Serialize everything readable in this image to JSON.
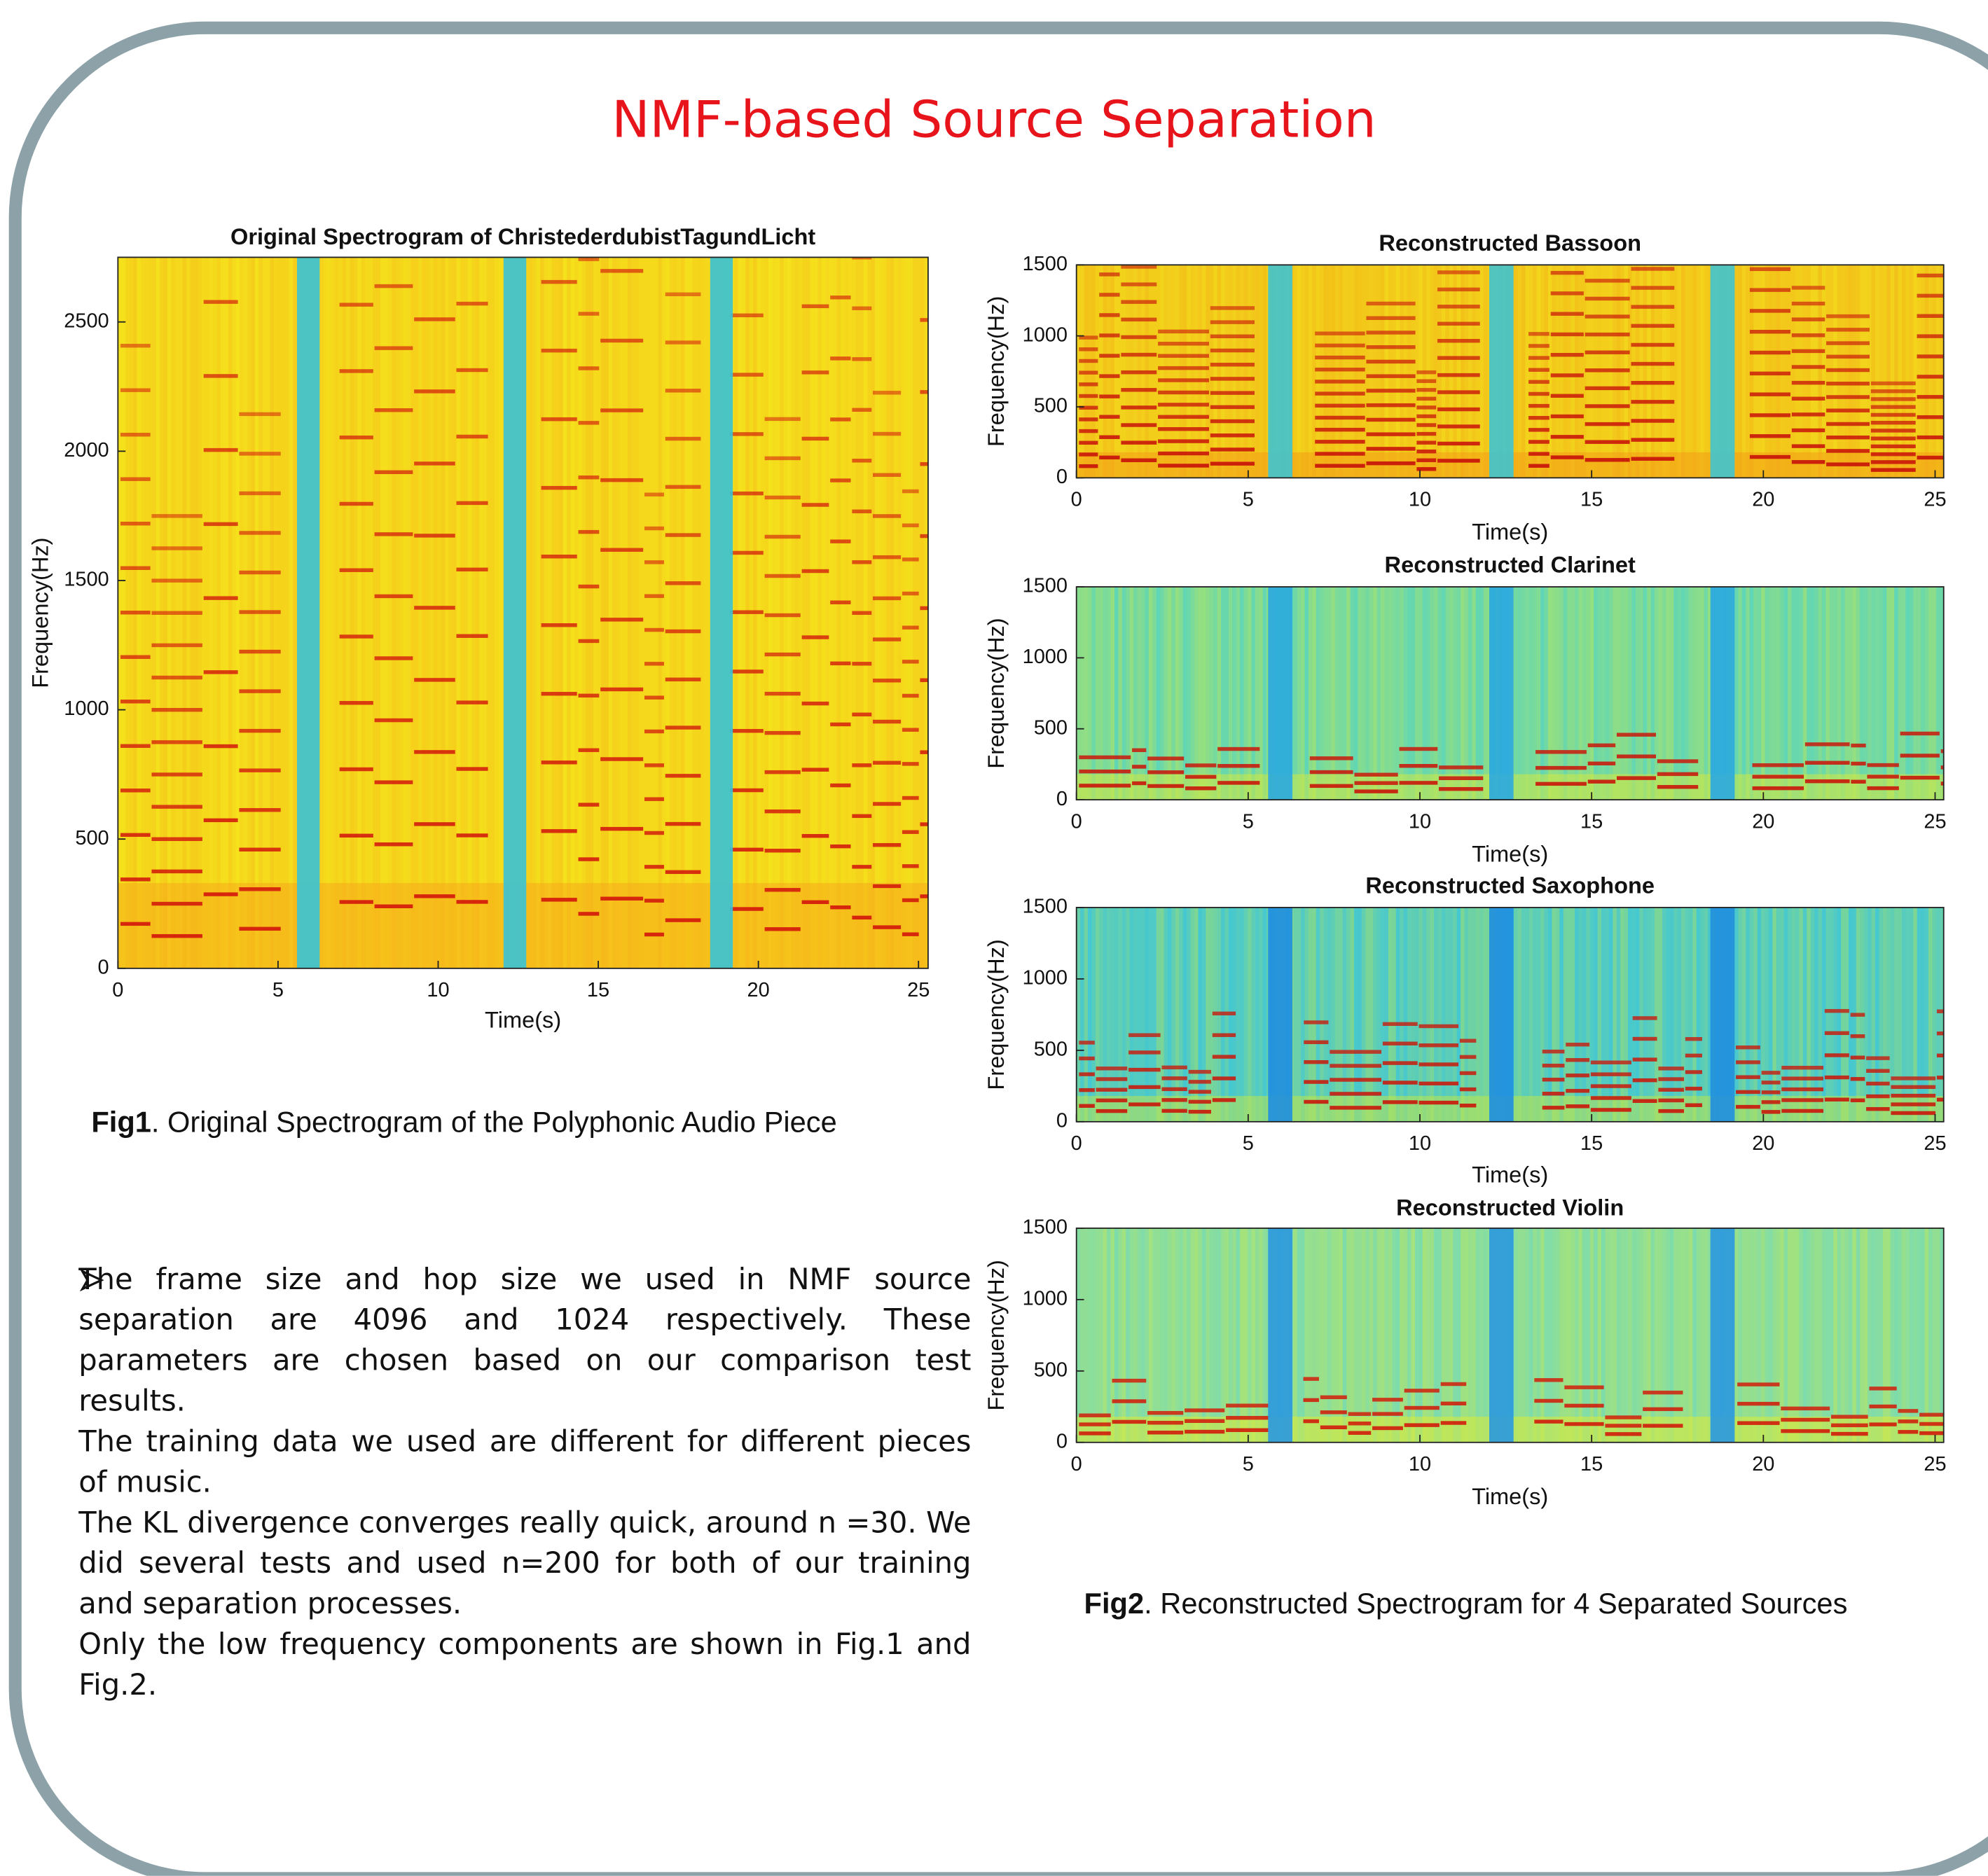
{
  "section_title": "NMF-based Source Separation",
  "charts": [
    {
      "type": "spectrogram",
      "title": "Original Spectrogram of ChristederdubistTagundLicht",
      "xlabel": "Time(s)",
      "ylabel": "Frequency(Hz)",
      "xlim": [
        0,
        25.3
      ],
      "xticks": [
        0,
        5,
        10,
        15,
        20,
        25
      ],
      "ylim": [
        0,
        2750
      ],
      "yticks": [
        0,
        500,
        1000,
        1500,
        2000,
        2500
      ]
    },
    {
      "type": "spectrogram",
      "title": "Reconstructed Bassoon",
      "xlabel": "Time(s)",
      "ylabel": "Frequency(Hz)",
      "xlim": [
        0,
        25.25
      ],
      "xticks": [
        0,
        5,
        10,
        15,
        20,
        25
      ],
      "ylim": [
        0,
        1500
      ],
      "yticks": [
        0,
        500,
        1000,
        1500
      ]
    },
    {
      "type": "spectrogram",
      "title": "Reconstructed Clarinet",
      "xlabel": "Time(s)",
      "ylabel": "Frequency(Hz)",
      "xlim": [
        0,
        25.25
      ],
      "xticks": [
        0,
        5,
        10,
        15,
        20,
        25
      ],
      "ylim": [
        0,
        1500
      ],
      "yticks": [
        0,
        500,
        1000,
        1500
      ]
    },
    {
      "type": "spectrogram",
      "title": "Reconstructed Saxophone",
      "xlabel": "Time(s)",
      "ylabel": "Frequency(Hz)",
      "xlim": [
        0,
        25.25
      ],
      "xticks": [
        0,
        5,
        10,
        15,
        20,
        25
      ],
      "ylim": [
        0,
        1500
      ],
      "yticks": [
        0,
        500,
        1000,
        1500
      ]
    },
    {
      "type": "spectrogram",
      "title": "Reconstructed Violin",
      "xlabel": "Time(s)",
      "ylabel": "Frequency(Hz)",
      "xlim": [
        0,
        25.25
      ],
      "xticks": [
        0,
        5,
        10,
        15,
        20,
        25
      ],
      "ylim": [
        0,
        1500
      ],
      "yticks": [
        0,
        500,
        1000,
        1500
      ]
    }
  ],
  "fig1_caption": {
    "label": "Fig1",
    "text": ". Original Spectrogram of the Polyphonic Audio Piece"
  },
  "fig2_caption": {
    "label": "Fig2",
    "text": ". Reconstructed Spectrogram for 4 Separated Sources"
  },
  "bullets": [
    "The frame size and hop size we used in NMF source separation are 4096 and 1024 respectively. These parameters are chosen based on our comparison test results.",
    "The training data we used are different for different pieces of music.",
    "The KL divergence converges really quick, around n =30. We did several tests and used n=200 for both of our training and separation processes.",
    "Only the low frequency components are shown in Fig.1 and Fig.2."
  ]
}
